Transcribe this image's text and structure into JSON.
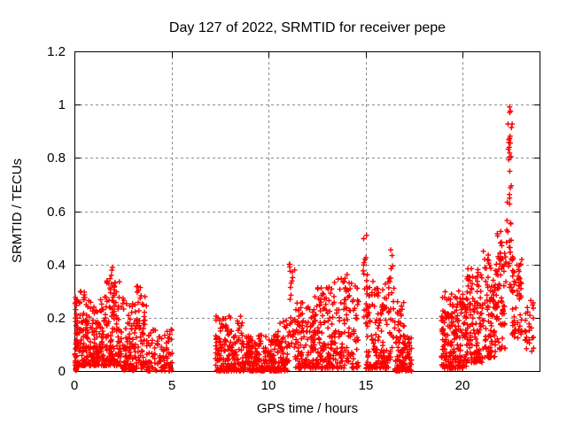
{
  "chart_data": {
    "type": "scatter",
    "title": "Day 127 of 2022, SRMTID for receiver pepe",
    "xlabel": "GPS time / hours",
    "ylabel": "SRMTID / TECUs",
    "xlim": [
      0,
      24
    ],
    "ylim": [
      0,
      1.2
    ],
    "x_ticks": [
      {
        "v": 0,
        "label": "0"
      },
      {
        "v": 5,
        "label": "5"
      },
      {
        "v": 10,
        "label": "10"
      },
      {
        "v": 15,
        "label": "15"
      },
      {
        "v": 20,
        "label": "20"
      }
    ],
    "y_ticks": [
      {
        "v": 0,
        "label": "0"
      },
      {
        "v": 0.2,
        "label": "0.2"
      },
      {
        "v": 0.4,
        "label": "0.4"
      },
      {
        "v": 0.6,
        "label": "0.6"
      },
      {
        "v": 0.8,
        "label": "0.8"
      },
      {
        "v": 1,
        "label": "1"
      },
      {
        "v": 1.2,
        "label": "1.2"
      }
    ],
    "grid": true,
    "grid_color": "#8c8c8c",
    "axis_color": "#000000",
    "legend": "none",
    "marker": {
      "shape": "plus",
      "color": "#ff0000",
      "half_size": 3,
      "stroke_width": 1.4
    },
    "seed": 127,
    "zero_markers": [
      0.08,
      2.56,
      3.03
    ],
    "clusters": [
      {
        "t": [
          0.02,
          0.15
        ],
        "n": 40,
        "v": [
          0.0,
          0.28
        ],
        "bias": 1.3
      },
      {
        "t": [
          0.05,
          0.12
        ],
        "n": 6,
        "v": [
          0.0,
          0.012
        ],
        "bias": 1.0
      },
      {
        "t": [
          0.12,
          0.75
        ],
        "n": 95,
        "v": [
          0.02,
          0.31
        ],
        "bias": 1.9
      },
      {
        "t": [
          0.75,
          1.55
        ],
        "n": 115,
        "v": [
          0.02,
          0.27
        ],
        "bias": 2.0
      },
      {
        "t": [
          1.55,
          2.45
        ],
        "n": 130,
        "v": [
          0.02,
          0.34
        ],
        "bias": 1.9
      },
      {
        "t": [
          1.82,
          2.12
        ],
        "n": 11,
        "v": [
          0.28,
          0.42
        ],
        "bias": 1.0
      },
      {
        "t": [
          2.45,
          3.62
        ],
        "n": 125,
        "v": [
          0.01,
          0.29
        ],
        "bias": 1.8
      },
      {
        "t": [
          3.18,
          3.42
        ],
        "n": 7,
        "v": [
          0.24,
          0.335
        ],
        "bias": 1.0
      },
      {
        "t": [
          2.5,
          2.62
        ],
        "n": 6,
        "v": [
          0.0,
          0.012
        ],
        "bias": 1.0
      },
      {
        "t": [
          2.98,
          3.1
        ],
        "n": 6,
        "v": [
          0.0,
          0.012
        ],
        "bias": 1.0
      },
      {
        "t": [
          3.5,
          3.75
        ],
        "n": 14,
        "v": [
          0.02,
          0.29
        ],
        "bias": 1.4
      },
      {
        "t": [
          3.7,
          5.05
        ],
        "n": 100,
        "v": [
          0.0,
          0.16
        ],
        "bias": 1.7
      },
      {
        "t": [
          7.25,
          8.65
        ],
        "n": 170,
        "v": [
          0.0,
          0.21
        ],
        "bias": 1.9
      },
      {
        "t": [
          8.65,
          10.45
        ],
        "n": 210,
        "v": [
          0.0,
          0.14
        ],
        "bias": 2.0
      },
      {
        "t": [
          10.45,
          11.05
        ],
        "n": 70,
        "v": [
          0.0,
          0.19
        ],
        "bias": 1.8
      },
      {
        "t": [
          11.05,
          11.35
        ],
        "n": 24,
        "v": [
          0.08,
          0.41
        ],
        "bias": 1.2
      },
      {
        "t": [
          11.35,
          12.35
        ],
        "n": 115,
        "v": [
          0.01,
          0.27
        ],
        "bias": 1.8
      },
      {
        "t": [
          12.35,
          13.35
        ],
        "n": 130,
        "v": [
          0.01,
          0.32
        ],
        "bias": 1.8
      },
      {
        "t": [
          13.35,
          14.65
        ],
        "n": 125,
        "v": [
          0.01,
          0.37
        ],
        "bias": 1.8
      },
      {
        "t": [
          13.9,
          14.12
        ],
        "n": 6,
        "v": [
          0.27,
          0.36
        ],
        "bias": 1.0
      },
      {
        "t": [
          14.85,
          15.12
        ],
        "n": 18,
        "v": [
          0.2,
          0.55
        ],
        "bias": 1.1
      },
      {
        "t": [
          15.0,
          16.2
        ],
        "n": 150,
        "v": [
          0.01,
          0.34
        ],
        "bias": 1.9
      },
      {
        "t": [
          16.2,
          16.5
        ],
        "n": 26,
        "v": [
          0.04,
          0.46
        ],
        "bias": 1.3
      },
      {
        "t": [
          16.5,
          17.05
        ],
        "n": 80,
        "v": [
          0.0,
          0.26
        ],
        "bias": 1.8
      },
      {
        "t": [
          17.0,
          17.38
        ],
        "n": 42,
        "v": [
          0.0,
          0.13
        ],
        "bias": 1.6
      },
      {
        "t": [
          18.9,
          19.35
        ],
        "n": 70,
        "v": [
          0.01,
          0.3
        ],
        "bias": 1.7
      },
      {
        "t": [
          19.35,
          20.2
        ],
        "n": 135,
        "v": [
          0.01,
          0.31
        ],
        "bias": 1.7
      },
      {
        "t": [
          20.2,
          21.0
        ],
        "n": 120,
        "v": [
          0.03,
          0.39
        ],
        "bias": 1.6
      },
      {
        "t": [
          21.0,
          21.7
        ],
        "n": 100,
        "v": [
          0.05,
          0.45
        ],
        "bias": 1.5
      },
      {
        "t": [
          21.7,
          22.18
        ],
        "n": 70,
        "v": [
          0.08,
          0.53
        ],
        "bias": 1.4
      },
      {
        "t": [
          22.2,
          22.58
        ],
        "n": 26,
        "v": [
          0.3,
          0.56
        ],
        "bias": 1.0
      },
      {
        "t": [
          22.28,
          22.52
        ],
        "n": 8,
        "v": [
          0.56,
          0.76
        ],
        "bias": 1.0
      },
      {
        "t": [
          22.32,
          22.55
        ],
        "n": 14,
        "v": [
          0.78,
          0.94
        ],
        "bias": 1.0
      },
      {
        "t": [
          22.38,
          22.5
        ],
        "n": 3,
        "v": [
          0.96,
          1.01
        ],
        "bias": 1.0
      },
      {
        "t": [
          22.55,
          23.05
        ],
        "n": 45,
        "v": [
          0.12,
          0.43
        ],
        "bias": 1.3
      },
      {
        "t": [
          22.85,
          23.0
        ],
        "n": 10,
        "v": [
          0.28,
          0.36
        ],
        "bias": 1.0
      },
      {
        "t": [
          23.15,
          23.65
        ],
        "n": 28,
        "v": [
          0.07,
          0.27
        ],
        "bias": 1.2
      }
    ]
  }
}
